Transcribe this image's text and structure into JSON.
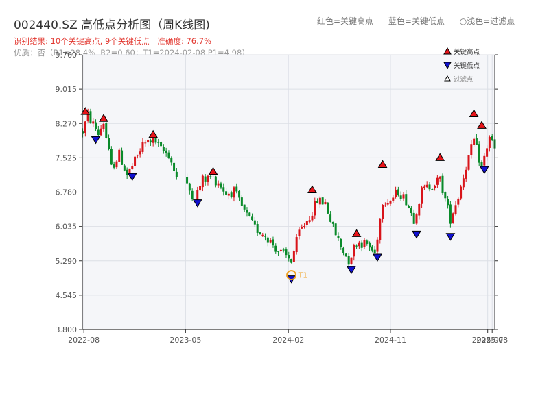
{
  "header": {
    "title": "002440.SZ 高低点分析图（周K线图)",
    "note_high": "红色=关键高点",
    "note_low": "蓝色=关键低点",
    "note_filtered": "○浅色=过滤点",
    "result_prefix": "识别结果: 10个关键高点, 9个关键低点",
    "accuracy": "准确度: 76.7%",
    "quality_line": "优质：否（R1=28.4%, R2=0.60；T1=2024-02-08 P1=4.98）"
  },
  "legend": [
    {
      "label": "关键高点",
      "marker": "up",
      "color": "#e8141a"
    },
    {
      "label": "关键低点",
      "marker": "down",
      "color": "#1010d0"
    },
    {
      "label": "过滤点",
      "marker": "up-hollow",
      "color": "#ffffff"
    }
  ],
  "colors": {
    "up": "#d8141a",
    "down": "#0a8a2a",
    "high_marker": "#e8141a",
    "low_marker": "#1010d0",
    "t1": "#f0a020",
    "plot_bg": "#f5f6f9",
    "grid": "#dcdfe6",
    "axis": "#333333"
  },
  "chart_data": {
    "type": "candlestick",
    "title": "002440.SZ 高低点分析图（周K线图)",
    "ylim": [
      3.8,
      9.76
    ],
    "yticks": [
      "3.800",
      "4.545",
      "5.290",
      "6.035",
      "6.780",
      "7.525",
      "8.270",
      "9.015",
      "9.760"
    ],
    "xlim": [
      "2022-07-28",
      "2025-08-08"
    ],
    "xticks": [
      {
        "date": "2022-08-01",
        "label": "2022-08"
      },
      {
        "date": "2023-05-01",
        "label": "2023-05"
      },
      {
        "date": "2024-02-01",
        "label": "2024-02"
      },
      {
        "date": "2024-11-01",
        "label": "2024-11"
      },
      {
        "date": "2025-07-20",
        "label": "2025-07"
      },
      {
        "date": "2025-08-01",
        "label": "2025-08"
      }
    ],
    "price_path": [
      [
        "2022-07-29",
        8.1
      ],
      [
        "2022-08-12",
        8.45
      ],
      [
        "2022-09-09",
        8.05
      ],
      [
        "2022-09-23",
        8.3
      ],
      [
        "2022-10-14",
        7.3
      ],
      [
        "2022-11-04",
        7.6
      ],
      [
        "2022-11-25",
        7.15
      ],
      [
        "2022-12-16",
        7.45
      ],
      [
        "2023-01-06",
        7.8
      ],
      [
        "2023-02-03",
        7.95
      ],
      [
        "2023-02-24",
        7.7
      ],
      [
        "2023-03-17",
        7.6
      ],
      [
        "2023-04-07",
        7.1
      ],
      [
        "2023-05-05",
        6.9
      ],
      [
        "2023-05-26",
        6.65
      ],
      [
        "2023-06-16",
        7.05
      ],
      [
        "2023-07-07",
        7.1
      ],
      [
        "2023-07-28",
        7.0
      ],
      [
        "2023-08-18",
        6.75
      ],
      [
        "2023-09-08",
        6.8
      ],
      [
        "2023-10-06",
        6.35
      ],
      [
        "2023-11-03",
        6.0
      ],
      [
        "2023-12-01",
        5.85
      ],
      [
        "2024-01-05",
        5.5
      ],
      [
        "2024-02-09",
        5.3
      ],
      [
        "2024-03-01",
        5.9
      ],
      [
        "2024-03-29",
        6.25
      ],
      [
        "2024-04-19",
        6.6
      ],
      [
        "2024-05-10",
        6.55
      ],
      [
        "2024-05-31",
        6.0
      ],
      [
        "2024-06-21",
        5.6
      ],
      [
        "2024-07-12",
        5.3
      ],
      [
        "2024-08-02",
        5.7
      ],
      [
        "2024-08-30",
        5.65
      ],
      [
        "2024-09-20",
        5.45
      ],
      [
        "2024-10-11",
        6.6
      ],
      [
        "2024-11-01",
        6.6
      ],
      [
        "2024-11-22",
        6.8
      ],
      [
        "2024-12-13",
        6.6
      ],
      [
        "2025-01-03",
        6.2
      ],
      [
        "2025-01-24",
        6.8
      ],
      [
        "2025-02-21",
        6.95
      ],
      [
        "2025-03-14",
        7.05
      ],
      [
        "2025-04-11",
        6.2
      ],
      [
        "2025-05-02",
        6.7
      ],
      [
        "2025-05-23",
        7.35
      ],
      [
        "2025-06-13",
        7.9
      ],
      [
        "2025-07-04",
        7.3
      ],
      [
        "2025-07-25",
        8.0
      ],
      [
        "2025-08-08",
        7.7
      ]
    ],
    "gaps": [
      [
        "2023-04-14",
        "2023-04-28"
      ]
    ],
    "key_highs": [
      {
        "date": "2022-08-05",
        "price": 8.45
      },
      {
        "date": "2022-09-23",
        "price": 8.3
      },
      {
        "date": "2023-02-03",
        "price": 7.95
      },
      {
        "date": "2023-07-14",
        "price": 7.15
      },
      {
        "date": "2024-04-05",
        "price": 6.75
      },
      {
        "date": "2024-08-02",
        "price": 5.8
      },
      {
        "date": "2024-10-11",
        "price": 7.3
      },
      {
        "date": "2025-03-14",
        "price": 7.45
      },
      {
        "date": "2025-06-13",
        "price": 8.4
      },
      {
        "date": "2025-07-04",
        "price": 8.15
      }
    ],
    "key_lows": [
      {
        "date": "2022-09-02",
        "price": 8.0
      },
      {
        "date": "2022-12-09",
        "price": 7.2
      },
      {
        "date": "2023-06-02",
        "price": 6.63
      },
      {
        "date": "2024-02-09",
        "price": 4.98
      },
      {
        "date": "2024-07-19",
        "price": 5.18
      },
      {
        "date": "2024-09-27",
        "price": 5.45
      },
      {
        "date": "2025-01-10",
        "price": 5.95
      },
      {
        "date": "2025-04-11",
        "price": 5.9
      },
      {
        "date": "2025-07-11",
        "price": 7.35
      }
    ],
    "t1": {
      "date": "2024-02-09",
      "price": 4.98,
      "label": "T1"
    }
  }
}
